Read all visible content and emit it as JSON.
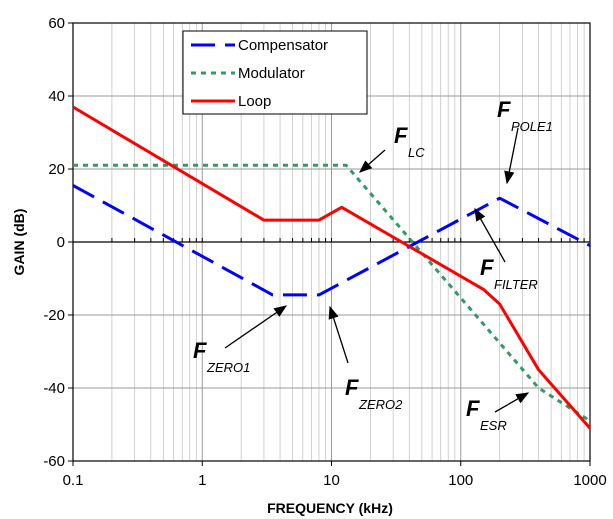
{
  "chart_data": {
    "type": "line",
    "xscale": "log",
    "xlim": [
      0.1,
      1000
    ],
    "ylim": [
      -60,
      60
    ],
    "xlabel": "FREQUENCY (kHz)",
    "ylabel": "GAIN (dB)",
    "x_ticks": [
      "0.1",
      "1",
      "10",
      "100",
      "1000"
    ],
    "y_ticks": [
      "60",
      "40",
      "20",
      "0",
      "-20",
      "-40",
      "-60"
    ],
    "grid": true,
    "legend_position": "top-left",
    "series": [
      {
        "name": "Compensator",
        "color": "#0000ff",
        "style": "long-dash",
        "x": [
          0.1,
          3.5,
          8,
          200,
          1000
        ],
        "y": [
          15.5,
          -14.5,
          -14.5,
          12,
          -1
        ]
      },
      {
        "name": "Modulator",
        "color": "#339966",
        "style": "dotted",
        "x": [
          0.1,
          13,
          400,
          1000
        ],
        "y": [
          21,
          21,
          -40,
          -49
        ]
      },
      {
        "name": "Loop",
        "color": "#ff0000",
        "style": "solid",
        "x": [
          0.1,
          3,
          8,
          12,
          150,
          200,
          400,
          1000
        ],
        "y": [
          37,
          6,
          6,
          9.5,
          -13,
          -17,
          -35,
          -51
        ]
      }
    ],
    "annotations": [
      {
        "label": "F",
        "sub": "LC",
        "x": 13,
        "y": 21
      },
      {
        "label": "F",
        "sub": "POLE1",
        "x": 200,
        "y": 12
      },
      {
        "label": "F",
        "sub": "FILTER",
        "x": 160,
        "y": 10
      },
      {
        "label": "F",
        "sub": "ZERO1",
        "x": 3.5,
        "y": -14.5
      },
      {
        "label": "F",
        "sub": "ZERO2",
        "x": 8,
        "y": -14.5
      },
      {
        "label": "F",
        "sub": "ESR",
        "x": 400,
        "y": -40
      }
    ]
  }
}
